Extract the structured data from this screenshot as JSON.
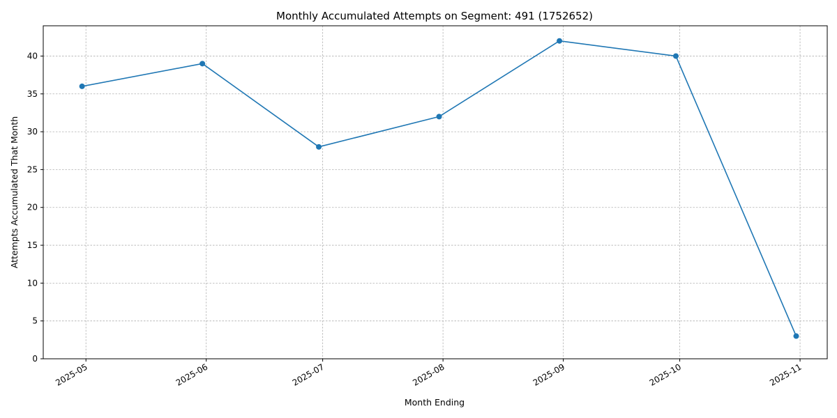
{
  "chart_data": {
    "type": "line",
    "title": "Monthly Accumulated Attempts on Segment: 491 (1752652)",
    "xlabel": "Month Ending",
    "ylabel": "Attempts Accumulated That Month",
    "x_ticks": [
      "2025-05",
      "2025-06",
      "2025-07",
      "2025-08",
      "2025-09",
      "2025-10",
      "2025-11"
    ],
    "x_range": [
      "2025-04-20",
      "2025-11-08"
    ],
    "ylim": [
      0,
      44
    ],
    "y_ticks": [
      0,
      5,
      10,
      15,
      20,
      25,
      30,
      35,
      40
    ],
    "grid": true,
    "series": [
      {
        "color": "#1f77b4",
        "points": [
          {
            "x": "2025-04-30",
            "y": 36
          },
          {
            "x": "2025-05-31",
            "y": 39
          },
          {
            "x": "2025-06-30",
            "y": 28
          },
          {
            "x": "2025-07-31",
            "y": 32
          },
          {
            "x": "2025-08-31",
            "y": 42
          },
          {
            "x": "2025-09-30",
            "y": 40
          },
          {
            "x": "2025-10-31",
            "y": 3
          }
        ]
      }
    ]
  }
}
